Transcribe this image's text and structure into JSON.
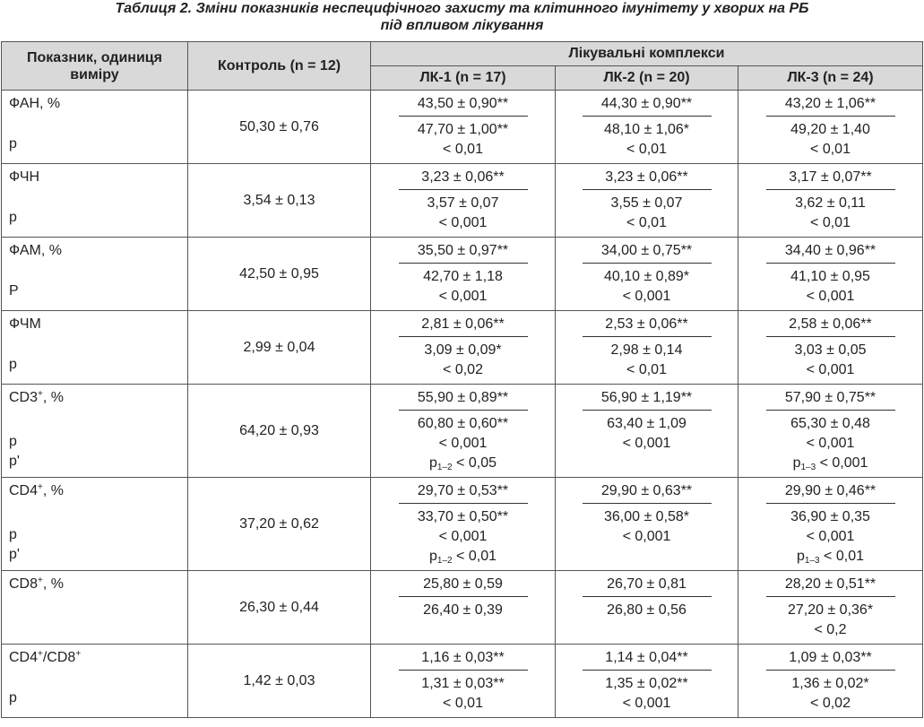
{
  "caption": {
    "line1": "Таблиця 2. Зміни показників неспецифічного захисту та клітинного імунітету у хворих на РБ",
    "line2": "під впливом лікування"
  },
  "headers": {
    "indicator": "Показник, одиниця виміру",
    "control": "Контроль (n = 12)",
    "group": "Лікувальні комплекси",
    "lk1": "ЛК-1 (n = 17)",
    "lk2": "ЛК-2 (n = 20)",
    "lk3": "ЛК-3 (n = 24)"
  },
  "rows": [
    {
      "name": "ФАН, %",
      "sup": "",
      "p_label": "р",
      "pp_label": "",
      "control": "50,30 ± 0,76",
      "cells": [
        {
          "top": "43,50 ± 0,90**",
          "bottom": "47,70 ± 1,00**",
          "p": "< 0,01",
          "pp_sub": "",
          "pp_val": ""
        },
        {
          "top": "44,30 ± 0,90**",
          "bottom": "48,10 ± 1,06*",
          "p": "< 0,01",
          "pp_sub": "",
          "pp_val": ""
        },
        {
          "top": "43,20 ± 1,06**",
          "bottom": "49,20 ± 1,40",
          "p": "< 0,01",
          "pp_sub": "",
          "pp_val": ""
        }
      ]
    },
    {
      "name": "ФЧН",
      "sup": "",
      "p_label": "р",
      "pp_label": "",
      "control": "3,54 ± 0,13",
      "cells": [
        {
          "top": "3,23 ± 0,06**",
          "bottom": "3,57 ± 0,07",
          "p": "< 0,001",
          "pp_sub": "",
          "pp_val": ""
        },
        {
          "top": "3,23 ± 0,06**",
          "bottom": "3,55 ± 0,07",
          "p": "< 0,01",
          "pp_sub": "",
          "pp_val": ""
        },
        {
          "top": "3,17 ± 0,07**",
          "bottom": "3,62 ± 0,11",
          "p": "< 0,01",
          "pp_sub": "",
          "pp_val": ""
        }
      ]
    },
    {
      "name": "ФАМ, %",
      "sup": "",
      "p_label": "Р",
      "pp_label": "",
      "control": "42,50 ± 0,95",
      "cells": [
        {
          "top": "35,50 ± 0,97**",
          "bottom": "42,70 ± 1,18",
          "p": "< 0,001",
          "pp_sub": "",
          "pp_val": ""
        },
        {
          "top": "34,00 ± 0,75**",
          "bottom": "40,10 ± 0,89*",
          "p": "< 0,001",
          "pp_sub": "",
          "pp_val": ""
        },
        {
          "top": "34,40 ± 0,96**",
          "bottom": "41,10 ± 0,95",
          "p": "< 0,001",
          "pp_sub": "",
          "pp_val": ""
        }
      ]
    },
    {
      "name": "ФЧМ",
      "sup": "",
      "p_label": "р",
      "pp_label": "",
      "control": "2,99 ± 0,04",
      "cells": [
        {
          "top": "2,81 ± 0,06**",
          "bottom": "3,09 ± 0,09*",
          "p": "< 0,02",
          "pp_sub": "",
          "pp_val": ""
        },
        {
          "top": "2,53 ± 0,06**",
          "bottom": "2,98 ± 0,14",
          "p": "< 0,01",
          "pp_sub": "",
          "pp_val": ""
        },
        {
          "top": "2,58 ± 0,06**",
          "bottom": "3,03 ± 0,05",
          "p": "< 0,001",
          "pp_sub": "",
          "pp_val": ""
        }
      ]
    },
    {
      "name": "CD3",
      "sup": "+",
      "name_suffix": ", %",
      "p_label": "р",
      "pp_label": "р'",
      "control": "64,20 ± 0,93",
      "cells": [
        {
          "top": "55,90 ± 0,89**",
          "bottom": "60,80 ± 0,60**",
          "p": "< 0,001",
          "pp_sub": "1–2",
          "pp_val": " < 0,05"
        },
        {
          "top": "56,90 ± 1,19**",
          "bottom": "63,40 ± 1,09",
          "p": "< 0,001",
          "pp_sub": "",
          "pp_val": ""
        },
        {
          "top": "57,90 ± 0,75**",
          "bottom": "65,30 ± 0,48",
          "p": "< 0,001",
          "pp_sub": "1–3",
          "pp_val": " < 0,001"
        }
      ]
    },
    {
      "name": "CD4",
      "sup": "+",
      "name_suffix": ", %",
      "p_label": "р",
      "pp_label": "р'",
      "control": "37,20 ± 0,62",
      "cells": [
        {
          "top": "29,70 ± 0,53**",
          "bottom": "33,70 ± 0,50**",
          "p": "< 0,001",
          "pp_sub": "1–2",
          "pp_val": " < 0,01"
        },
        {
          "top": "29,90 ± 0,63**",
          "bottom": "36,00 ± 0,58*",
          "p": "< 0,001",
          "pp_sub": "",
          "pp_val": ""
        },
        {
          "top": "29,90 ± 0,46**",
          "bottom": "36,90 ± 0,35",
          "p": "< 0,001",
          "pp_sub": "1–3",
          "pp_val": " < 0,01"
        }
      ]
    },
    {
      "name": "CD8",
      "sup": "+",
      "name_suffix": ", %",
      "p_label": "",
      "pp_label": "",
      "control": "26,30 ± 0,44",
      "cells": [
        {
          "top": "25,80 ± 0,59",
          "bottom": "26,40 ± 0,39",
          "p": "",
          "pp_sub": "",
          "pp_val": ""
        },
        {
          "top": "26,70 ± 0,81",
          "bottom": "26,80 ± 0,56",
          "p": "",
          "pp_sub": "",
          "pp_val": ""
        },
        {
          "top": "28,20 ± 0,51**",
          "bottom": "27,20 ± 0,36*",
          "p": "< 0,2",
          "pp_sub": "",
          "pp_val": ""
        }
      ]
    },
    {
      "name": "CD4",
      "sup": "+",
      "name_mid": "/CD8",
      "sup2": "+",
      "name_suffix": "",
      "p_label": "р",
      "pp_label": "",
      "control": "1,42 ± 0,03",
      "cells": [
        {
          "top": "1,16 ± 0,03**",
          "bottom": "1,31 ± 0,03**",
          "p": "< 0,01",
          "pp_sub": "",
          "pp_val": ""
        },
        {
          "top": "1,14 ± 0,04**",
          "bottom": "1,35 ± 0,02**",
          "p": "< 0,001",
          "pp_sub": "",
          "pp_val": ""
        },
        {
          "top": "1,09 ± 0,03**",
          "bottom": "1,36 ± 0,02*",
          "p": "< 0,02",
          "pp_sub": "",
          "pp_val": ""
        }
      ]
    }
  ]
}
